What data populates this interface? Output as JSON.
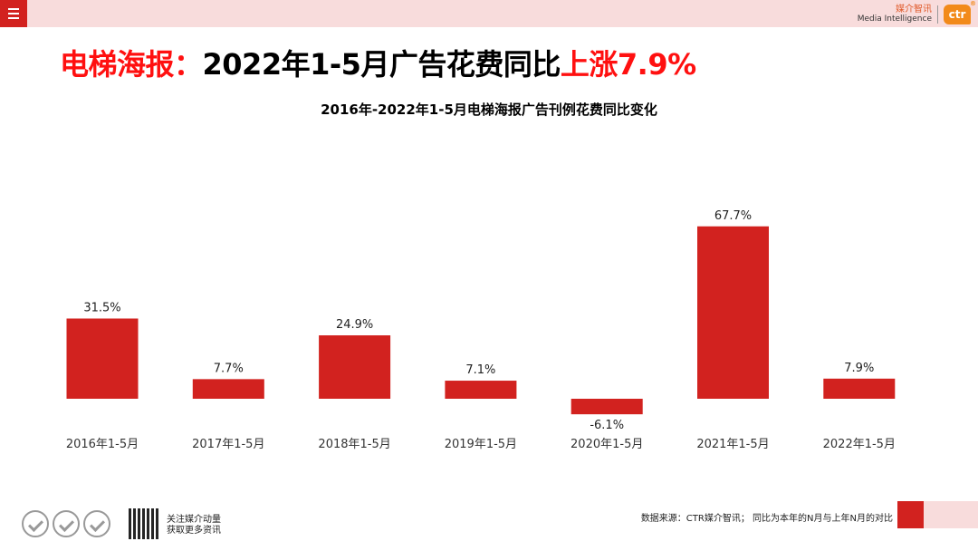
{
  "header": {
    "menu_icon": "hamburger-icon",
    "brand_cn": "媒介智讯",
    "brand_en": "Media Intelligence",
    "brand_logo": "ctr",
    "brand_mark": "®"
  },
  "title": {
    "part1": "电梯海报：",
    "part2": "2022年1-5月广告花费同比",
    "part3": "上涨7.9%"
  },
  "colors": {
    "accent": "#d2221f",
    "title_red": "#ff1010",
    "bar": "#d2221f",
    "topbar": "#f8dcdc"
  },
  "chart_data": {
    "type": "bar",
    "title": "2016年-2022年1-5月电梯海报广告刊例花费同比变化",
    "categories": [
      "2016年1-5月",
      "2017年1-5月",
      "2018年1-5月",
      "2019年1-5月",
      "2020年1-5月",
      "2021年1-5月",
      "2022年1-5月"
    ],
    "values": [
      31.5,
      7.7,
      24.9,
      7.1,
      -6.1,
      67.7,
      7.9
    ],
    "value_labels": [
      "31.5%",
      "7.7%",
      "24.9%",
      "7.1%",
      "-6.1%",
      "67.7%",
      "7.9%"
    ],
    "unit": "%",
    "ylim": [
      -10,
      70
    ],
    "grid": false,
    "legend": "none"
  },
  "footer": {
    "qr_line1": "关注媒介动量",
    "qr_line2": "获取更多资讯",
    "source_note": "数据来源：CTR媒介智讯；  同比为本年的N月与上年N月的对比"
  }
}
